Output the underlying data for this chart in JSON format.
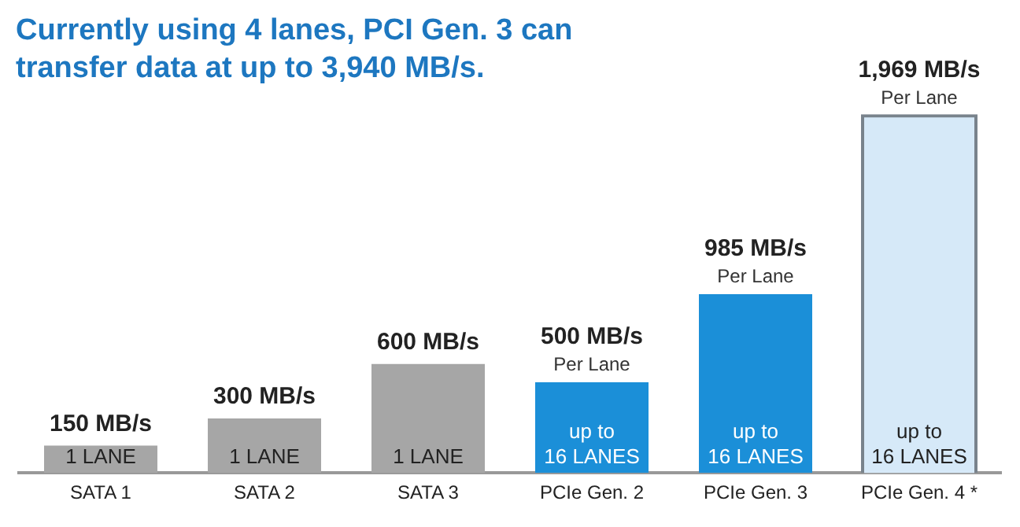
{
  "chart_data": {
    "type": "bar",
    "title": "Currently using 4 lanes, PCI Gen. 3 can transfer data at up to 3,940 MB/s.",
    "categories": [
      "SATA 1",
      "SATA 2",
      "SATA 3",
      "PCIe Gen. 2",
      "PCIe Gen. 3",
      "PCIe Gen. 4 *"
    ],
    "series": [
      {
        "values": [
          150,
          300,
          600,
          500,
          985,
          null
        ],
        "colors": [
          "#a6a6a6",
          "#a6a6a6",
          "#a6a6a6",
          "#1b8fd8",
          "#1b8fd8",
          "#1b8fd8"
        ],
        "value_labels": [
          "150 MB/s",
          "300 MB/s",
          "600 MB/s",
          "500 MB/s",
          "985 MB/s",
          null
        ]
      },
      {
        "values": [
          null,
          null,
          null,
          null,
          null,
          1969
        ],
        "color": "#d6e9f8",
        "line_style": "dashed",
        "value_labels": [
          null,
          null,
          null,
          null,
          null,
          "1,969 MB/s"
        ]
      }
    ],
    "annotations": [
      {
        "text": "Per Lane",
        "x": "PCIe Gen. 2",
        "y": 500
      },
      {
        "text": "Per Lane",
        "x": "PCIe Gen. 3",
        "y": 985
      },
      {
        "text": "Per Lane",
        "x": "PCIe Gen. 4 *",
        "y": 1969
      },
      {
        "text": "1 LANE",
        "x": "SATA 1",
        "y": 0
      },
      {
        "text": "1 LANE",
        "x": "SATA 2",
        "y": 0
      },
      {
        "text": "1 LANE",
        "x": "SATA 3",
        "y": 0
      },
      {
        "text": "up to",
        "x": "PCIe Gen. 2",
        "y": 0
      },
      {
        "text": "16 LANES",
        "x": "PCIe Gen. 2",
        "y": 0
      },
      {
        "text": "up to",
        "x": "PCIe Gen. 3",
        "y": 0
      },
      {
        "text": "16 LANES",
        "x": "PCIe Gen. 3",
        "y": 0
      },
      {
        "text": "up to",
        "x": "PCIe Gen. 4 *",
        "y": 0
      },
      {
        "text": "16 LANES",
        "x": "PCIe Gen. 4 *",
        "y": 0
      }
    ],
    "grid": false,
    "legend": false
  }
}
